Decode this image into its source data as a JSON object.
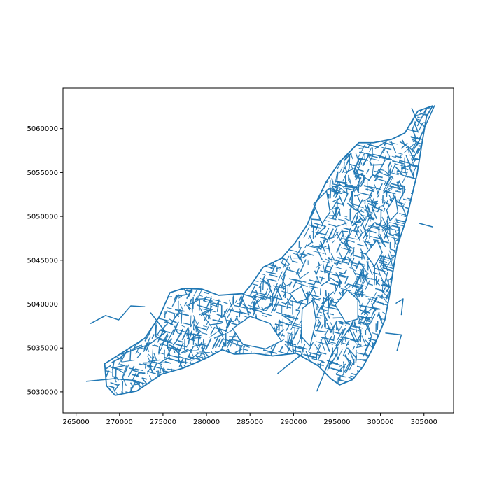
{
  "chart_data": {
    "type": "map",
    "title": "",
    "xlabel": "",
    "ylabel": "",
    "xlim": [
      263500,
      308400
    ],
    "ylim": [
      5027600,
      5064600
    ],
    "x_ticks": [
      265000,
      270000,
      275000,
      280000,
      285000,
      290000,
      295000,
      300000,
      305000
    ],
    "y_ticks": [
      5030000,
      5035000,
      5040000,
      5045000,
      5050000,
      5055000,
      5060000
    ],
    "x_tick_labels": [
      "265000",
      "270000",
      "275000",
      "280000",
      "285000",
      "290000",
      "295000",
      "300000",
      "305000"
    ],
    "y_tick_labels": [
      "5030000",
      "5035000",
      "5040000",
      "5045000",
      "5050000",
      "5055000",
      "5060000"
    ],
    "grid": false,
    "legend": "none",
    "series_color": "#1f77b4",
    "outline": [
      [
        269500,
        5029600
      ],
      [
        272000,
        5030100
      ],
      [
        274800,
        5032000
      ],
      [
        277300,
        5032700
      ],
      [
        279900,
        5033800
      ],
      [
        281800,
        5034800
      ],
      [
        283200,
        5034300
      ],
      [
        285500,
        5034400
      ],
      [
        287600,
        5034100
      ],
      [
        290300,
        5034400
      ],
      [
        292800,
        5033000
      ],
      [
        294300,
        5031500
      ],
      [
        295300,
        5030800
      ],
      [
        296800,
        5031400
      ],
      [
        298000,
        5032900
      ],
      [
        299300,
        5035300
      ],
      [
        300500,
        5038200
      ],
      [
        301000,
        5040800
      ],
      [
        301400,
        5043500
      ],
      [
        301900,
        5046500
      ],
      [
        303000,
        5049800
      ],
      [
        304200,
        5054800
      ],
      [
        304800,
        5058500
      ],
      [
        305300,
        5061400
      ],
      [
        306000,
        5062600
      ],
      [
        304300,
        5062000
      ],
      [
        302800,
        5059500
      ],
      [
        301300,
        5058800
      ],
      [
        299200,
        5058400
      ],
      [
        297500,
        5058400
      ],
      [
        295300,
        5056200
      ],
      [
        293800,
        5054000
      ],
      [
        292600,
        5051600
      ],
      [
        291600,
        5049100
      ],
      [
        290200,
        5047000
      ],
      [
        288600,
        5045200
      ],
      [
        286500,
        5044200
      ],
      [
        285200,
        5042300
      ],
      [
        284300,
        5041200
      ],
      [
        281400,
        5041000
      ],
      [
        279500,
        5041700
      ],
      [
        277400,
        5041800
      ],
      [
        275800,
        5041300
      ],
      [
        274600,
        5038600
      ],
      [
        272900,
        5036100
      ],
      [
        271000,
        5034900
      ],
      [
        268300,
        5033200
      ],
      [
        268500,
        5030700
      ],
      [
        269500,
        5029600
      ]
    ],
    "holes": [
      [
        [
          283000,
          5037200
        ],
        [
          285000,
          5038600
        ],
        [
          287300,
          5037800
        ],
        [
          288600,
          5035800
        ],
        [
          286800,
          5034900
        ],
        [
          284200,
          5035400
        ],
        [
          283000,
          5037200
        ]
      ],
      [
        [
          291000,
          5039500
        ],
        [
          292200,
          5040400
        ],
        [
          292600,
          5038100
        ],
        [
          291900,
          5035200
        ],
        [
          290900,
          5036300
        ],
        [
          291000,
          5039500
        ]
      ],
      [
        [
          294800,
          5039900
        ],
        [
          296200,
          5041600
        ],
        [
          297400,
          5040500
        ],
        [
          297400,
          5038300
        ],
        [
          296000,
          5037900
        ],
        [
          294800,
          5039900
        ]
      ],
      [
        [
          292300,
          5051400
        ],
        [
          293800,
          5052900
        ],
        [
          294200,
          5050500
        ],
        [
          293300,
          5049200
        ],
        [
          292300,
          5051400
        ]
      ],
      [
        [
          298300,
          5045700
        ],
        [
          299600,
          5047300
        ],
        [
          300200,
          5045900
        ],
        [
          299300,
          5044300
        ],
        [
          298300,
          5045700
        ]
      ],
      [
        [
          300700,
          5050700
        ],
        [
          301700,
          5052300
        ],
        [
          302000,
          5050500
        ],
        [
          301100,
          5049500
        ],
        [
          300700,
          5050700
        ]
      ],
      [
        [
          289600,
          5041200
        ],
        [
          290900,
          5042000
        ],
        [
          291500,
          5040600
        ],
        [
          290400,
          5040200
        ],
        [
          289600,
          5041200
        ]
      ]
    ],
    "extra_lines": [
      [
        [
          266200,
          5031200
        ],
        [
          269300,
          5031500
        ],
        [
          271800,
          5031300
        ]
      ],
      [
        [
          292700,
          5030100
        ],
        [
          294400,
          5034300
        ],
        [
          296800,
          5037800
        ]
      ],
      [
        [
          304500,
          5049200
        ],
        [
          306000,
          5048800
        ]
      ],
      [
        [
          270200,
          5034300
        ],
        [
          273400,
          5035400
        ],
        [
          275300,
          5036800
        ],
        [
          273600,
          5039000
        ]
      ],
      [
        [
          266700,
          5037800
        ],
        [
          268400,
          5038700
        ],
        [
          269900,
          5038200
        ],
        [
          271300,
          5039800
        ],
        [
          272900,
          5039700
        ]
      ],
      [
        [
          300600,
          5036700
        ],
        [
          302400,
          5036500
        ],
        [
          301900,
          5034700
        ]
      ],
      [
        [
          301800,
          5040100
        ],
        [
          302600,
          5040600
        ],
        [
          302400,
          5038800
        ]
      ],
      [
        [
          303600,
          5062300
        ],
        [
          304200,
          5060900
        ],
        [
          305100,
          5060200
        ],
        [
          306200,
          5062600
        ]
      ],
      [
        [
          288200,
          5032100
        ],
        [
          289300,
          5033000
        ],
        [
          291000,
          5034300
        ]
      ],
      [
        [
          298000,
          5047500
        ],
        [
          299300,
          5049300
        ],
        [
          300600,
          5048600
        ]
      ]
    ]
  }
}
